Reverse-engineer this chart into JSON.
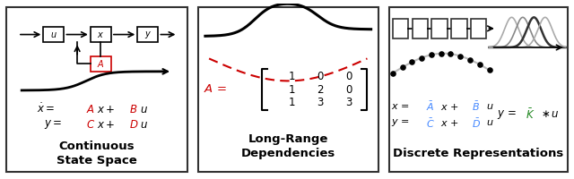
{
  "bg_color": "#ffffff",
  "border_color": "#333333",
  "panel1_title": "Continuous\nState Space",
  "panel2_title": "Long-Range\nDependencies",
  "panel3_title": "Discrete Representations",
  "mat_rows": [
    [
      1,
      0,
      0
    ],
    [
      1,
      2,
      0
    ],
    [
      1,
      3,
      3
    ]
  ],
  "red_color": "#cc0000",
  "blue_color": "#4488ff",
  "green_color": "#228822"
}
